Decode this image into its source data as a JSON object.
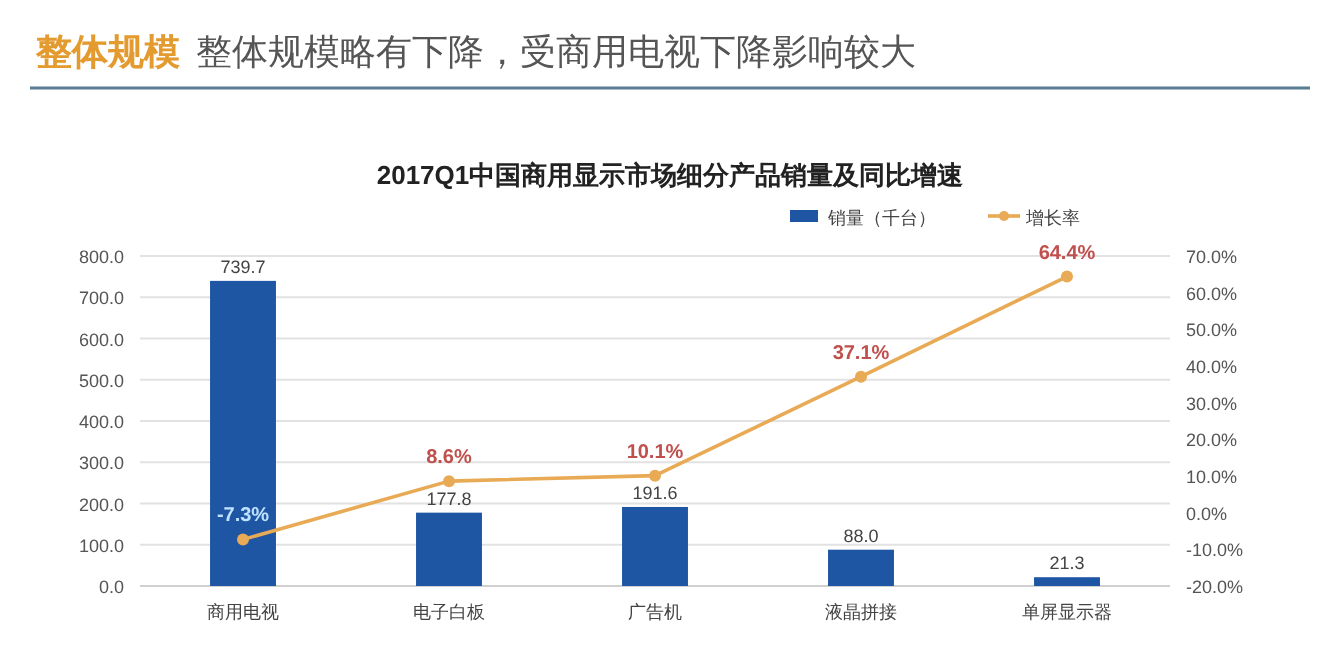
{
  "chart_data": {
    "type": "bar",
    "title": "2017Q1中国商用显示市场细分产品销量及同比增速",
    "annotations": [
      "整体规模",
      "整体规模略有下降，受商用电视下降影响较大"
    ],
    "categories": [
      "商用电视",
      "电子白板",
      "广告机",
      "液晶拼接",
      "单屏显示器"
    ],
    "series": [
      {
        "name": "销量（千台）",
        "color": "#1f56a3",
        "values": [
          739.7,
          177.8,
          191.6,
          88.0,
          21.3
        ],
        "value_labels": [
          "739.7",
          "177.8",
          "191.6",
          "88.0",
          "21.3"
        ]
      },
      {
        "name": "增长率",
        "type": "line",
        "axis": "y2",
        "color": "#e8aa55",
        "marker": "circle",
        "values": [
          -7.3,
          8.6,
          10.1,
          37.1,
          64.4
        ],
        "value_labels": [
          "-7.3%",
          "8.6%",
          "10.1%",
          "37.1%",
          "64.4%"
        ]
      }
    ],
    "ylim": [
      0,
      800
    ],
    "yticks": [
      {
        "value": 0,
        "label": "0.0"
      },
      {
        "value": 100,
        "label": "100.0"
      },
      {
        "value": 200,
        "label": "200.0"
      },
      {
        "value": 300,
        "label": "300.0"
      },
      {
        "value": 400,
        "label": "400.0"
      },
      {
        "value": 500,
        "label": "500.0"
      },
      {
        "value": 600,
        "label": "600.0"
      },
      {
        "value": 700,
        "label": "700.0"
      },
      {
        "value": 800,
        "label": "800.0"
      }
    ],
    "y2lim": [
      -20,
      70
    ],
    "y2ticks": [
      {
        "value": -20,
        "label": "-20.0%"
      },
      {
        "value": -10,
        "label": "-10.0%"
      },
      {
        "value": 0,
        "label": "0.0%"
      },
      {
        "value": 10,
        "label": "10.0%"
      },
      {
        "value": 20,
        "label": "20.0%"
      },
      {
        "value": 30,
        "label": "30.0%"
      },
      {
        "value": 40,
        "label": "40.0%"
      },
      {
        "value": 50,
        "label": "50.0%"
      },
      {
        "value": 60,
        "label": "60.0%"
      },
      {
        "value": 70,
        "label": "70.0%"
      }
    ],
    "grid": "y",
    "legend": "top right"
  }
}
